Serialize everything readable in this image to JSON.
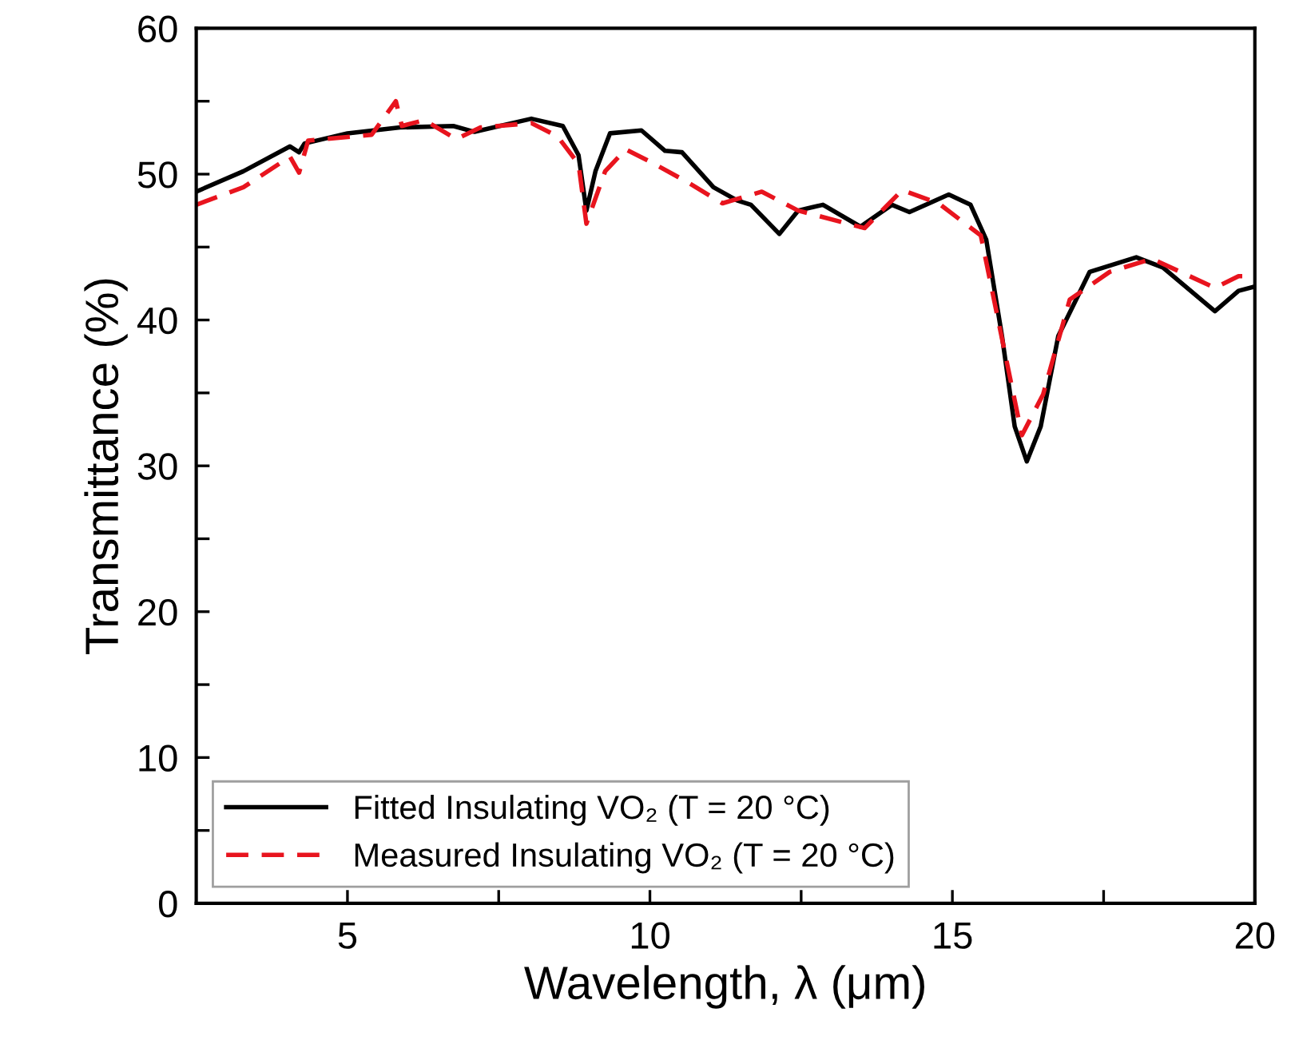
{
  "chart_data": {
    "type": "line",
    "xlabel": "Wavelength, λ (μm)",
    "ylabel": "Transmittance (%)",
    "xlim": [
      2.5,
      20
    ],
    "xticks": [
      5,
      {
        "value": 7.5,
        "label": null
      },
      10,
      {
        "value": 12.5,
        "label": null
      },
      15,
      {
        "value": 17.5,
        "label": null
      },
      20
    ],
    "ylim": [
      0,
      60
    ],
    "yticks": [
      0,
      {
        "value": 5,
        "label": null
      },
      10,
      {
        "value": 15,
        "label": null
      },
      20,
      {
        "value": 25,
        "label": null
      },
      30,
      {
        "value": 35,
        "label": null
      },
      40,
      {
        "value": 45,
        "label": null
      },
      50,
      {
        "value": 55,
        "label": null
      },
      60
    ],
    "grid": false,
    "legend": "bottom left",
    "marker": "none",
    "series": [
      {
        "name": "Fitted Insulating VO₂ (T = 20 °C)",
        "color": "#000000",
        "line_style": "solid",
        "x": [
          2.5,
          3.28,
          4.05,
          4.2,
          4.29,
          5.0,
          5.87,
          6.75,
          7.1,
          8.04,
          8.56,
          8.82,
          8.95,
          9.1,
          9.34,
          9.86,
          10.25,
          10.53,
          11.05,
          11.44,
          11.67,
          12.14,
          12.45,
          12.86,
          13.48,
          14.0,
          14.29,
          14.94,
          15.3,
          15.56,
          15.82,
          16.03,
          16.23,
          16.46,
          16.75,
          17.27,
          18.04,
          18.48,
          19.34,
          19.73,
          20.0
        ],
        "values": [
          48.8,
          50.2,
          51.9,
          51.5,
          52.1,
          52.8,
          53.2,
          53.3,
          52.9,
          53.8,
          53.3,
          51.3,
          47.5,
          50.2,
          52.8,
          53.0,
          51.6,
          51.5,
          49.1,
          48.2,
          47.9,
          45.9,
          47.5,
          47.9,
          46.4,
          47.9,
          47.4,
          48.6,
          47.9,
          45.5,
          38.9,
          32.7,
          30.3,
          32.7,
          38.9,
          43.3,
          44.3,
          43.6,
          40.6,
          42.0,
          42.3
        ]
      },
      {
        "name": "Measured Insulating VO₂ (T = 20 °C)",
        "color": "#e8141e",
        "line_style": "dashed",
        "x": [
          2.5,
          3.28,
          4.05,
          4.2,
          4.35,
          5.4,
          5.8,
          5.9,
          6.27,
          6.8,
          7.2,
          8.04,
          8.47,
          8.82,
          8.95,
          9.26,
          9.6,
          10.03,
          10.6,
          11.2,
          11.85,
          12.45,
          13.55,
          14.17,
          14.77,
          15.47,
          15.9,
          16.15,
          16.5,
          16.94,
          17.6,
          18.3,
          19.34,
          19.73,
          20.0
        ],
        "values": [
          47.9,
          49.1,
          51.2,
          50.1,
          52.3,
          52.7,
          55.0,
          53.3,
          53.7,
          52.4,
          53.2,
          53.5,
          52.6,
          50.7,
          46.6,
          50.2,
          51.7,
          50.8,
          49.5,
          48.0,
          48.8,
          47.5,
          46.3,
          48.9,
          48.0,
          45.8,
          37.1,
          32.1,
          34.9,
          41.4,
          43.3,
          44.2,
          42.2,
          43.0,
          43.0
        ]
      }
    ]
  }
}
